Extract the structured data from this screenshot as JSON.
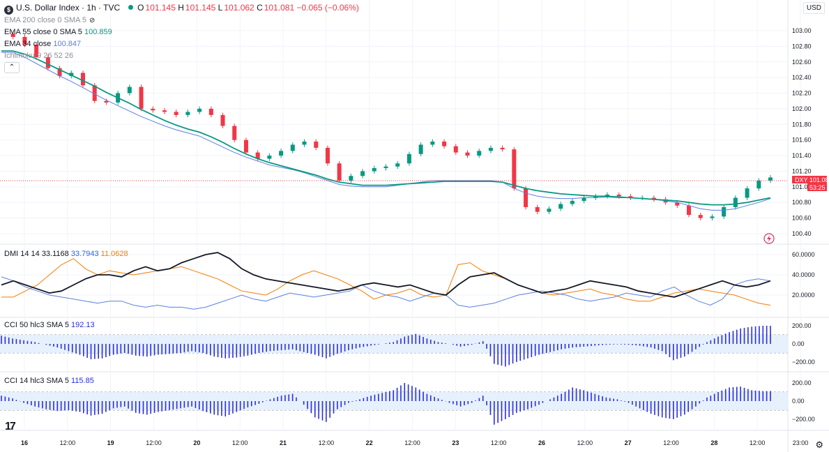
{
  "header": {
    "symbol_icon": "dollar-badge-icon",
    "title": "U.S. Dollar Index · 1h · TVC",
    "o_label": "O",
    "o": "101.145",
    "h_label": "H",
    "h": "101.145",
    "l_label": "L",
    "l": "101.062",
    "c_label": "C",
    "c": "101.081",
    "change": "−0.065 (−0.06%)"
  },
  "indicators": {
    "ema200": {
      "label": "EMA 200 close 0 SMA 5"
    },
    "ema55": {
      "label": "EMA 55 close 0 SMA 5",
      "value": "100.859",
      "color": "#089981"
    },
    "ema34": {
      "label": "EMA 34 close",
      "value": "100.847",
      "color": "#5b7fe0"
    },
    "ichimoku": {
      "label": "Ichimoku 9 26 52 26"
    },
    "dmi": {
      "label": "DMI 14 14",
      "v1": "33.1168",
      "v2": "33.7943",
      "v3": "11.0628"
    },
    "cci50": {
      "label": "CCI 50 hlc3 SMA 5",
      "value": "192.13"
    },
    "cci14": {
      "label": "CCI 14 hlc3 SMA 5",
      "value": "115.85"
    }
  },
  "currency": "USD",
  "price_tag": {
    "symbol": "DXY",
    "price": "101.08",
    "countdown": "53:25"
  },
  "colors": {
    "up": "#089981",
    "down": "#f23645",
    "cci": "#2a2ee0",
    "adx": "#131722",
    "minus_di": "#f57c00",
    "plus_di": "#5b7fe0"
  },
  "chart_data": {
    "type": "candlestick",
    "price_axis_ticks": [
      "103.00",
      "102.80",
      "102.60",
      "102.40",
      "102.20",
      "102.00",
      "101.80",
      "101.60",
      "101.40",
      "101.20",
      "101.00",
      "100.80",
      "100.60",
      "100.40"
    ],
    "time_axis_ticks": [
      "16",
      "12:00",
      "19",
      "12:00",
      "20",
      "12:00",
      "21",
      "12:00",
      "22",
      "12:00",
      "23",
      "12:00",
      "26",
      "12:00",
      "27",
      "12:00",
      "28",
      "12:00",
      "23:00"
    ],
    "dmi_axis_ticks": [
      "60.0000",
      "40.0000",
      "20.0000"
    ],
    "cci50_axis_ticks": [
      "200.00",
      "0.00",
      "−200.00"
    ],
    "cci14_axis_ticks": [
      "200.00",
      "0.00",
      "−200.00"
    ],
    "price_path": [
      102.96,
      102.92,
      102.82,
      102.66,
      102.52,
      102.42,
      102.46,
      102.3,
      102.1,
      102.08,
      102.2,
      102.28,
      102.0,
      101.98,
      101.96,
      101.92,
      101.96,
      102.0,
      101.92,
      101.78,
      101.6,
      101.44,
      101.36,
      101.4,
      101.46,
      101.54,
      101.58,
      101.5,
      101.3,
      101.08,
      101.14,
      101.2,
      101.24,
      101.26,
      101.3,
      101.42,
      101.54,
      101.58,
      101.52,
      101.44,
      101.4,
      101.46,
      101.5,
      101.48,
      100.98,
      100.74,
      100.68,
      100.72,
      100.78,
      100.82,
      100.86,
      100.88,
      100.9,
      100.88,
      100.86,
      100.86,
      100.84,
      100.8,
      100.76,
      100.64,
      100.6,
      100.62,
      100.74,
      100.86,
      100.98,
      101.08,
      101.12
    ],
    "ema55_path": [
      102.74,
      102.74,
      102.7,
      102.64,
      102.57,
      102.5,
      102.43,
      102.36,
      102.29,
      102.21,
      102.14,
      102.07,
      101.99,
      101.92,
      101.85,
      101.79,
      101.74,
      101.7,
      101.64,
      101.57,
      101.49,
      101.42,
      101.36,
      101.31,
      101.27,
      101.23,
      101.19,
      101.15,
      101.1,
      101.06,
      101.04,
      101.02,
      101.02,
      101.02,
      101.03,
      101.04,
      101.05,
      101.06,
      101.07,
      101.07,
      101.07,
      101.07,
      101.07,
      101.06,
      101.02,
      100.98,
      100.95,
      100.93,
      100.91,
      100.9,
      100.89,
      100.88,
      100.88,
      100.87,
      100.86,
      100.85,
      100.84,
      100.83,
      100.82,
      100.8,
      100.78,
      100.77,
      100.77,
      100.78,
      100.8,
      100.83,
      100.86
    ],
    "ema34_path": [
      102.72,
      102.72,
      102.66,
      102.58,
      102.5,
      102.42,
      102.35,
      102.27,
      102.19,
      102.11,
      102.04,
      101.97,
      101.9,
      101.84,
      101.78,
      101.73,
      101.69,
      101.65,
      101.58,
      101.51,
      101.44,
      101.38,
      101.33,
      101.28,
      101.25,
      101.22,
      101.18,
      101.13,
      101.08,
      101.03,
      101.01,
      101.0,
      101.0,
      101.0,
      101.02,
      101.04,
      101.06,
      101.08,
      101.08,
      101.08,
      101.08,
      101.08,
      101.08,
      101.06,
      100.98,
      100.92,
      100.88,
      100.86,
      100.85,
      100.85,
      100.86,
      100.86,
      100.87,
      100.86,
      100.86,
      100.85,
      100.84,
      100.82,
      100.8,
      100.76,
      100.72,
      100.7,
      100.7,
      100.72,
      100.76,
      100.8,
      100.85
    ],
    "dmi_adx": [
      30,
      34,
      30,
      26,
      22,
      24,
      30,
      36,
      40,
      40,
      38,
      44,
      48,
      44,
      46,
      52,
      56,
      60,
      62,
      56,
      46,
      40,
      36,
      34,
      32,
      30,
      28,
      26,
      24,
      26,
      30,
      32,
      30,
      28,
      30,
      26,
      22,
      20,
      30,
      38,
      40,
      42,
      36,
      30,
      26,
      22,
      24,
      26,
      30,
      34,
      32,
      30,
      28,
      24,
      22,
      20,
      18,
      22,
      26,
      30,
      34,
      30,
      28,
      30,
      34
    ],
    "dmi_minus": [
      18,
      18,
      24,
      30,
      40,
      50,
      56,
      46,
      40,
      44,
      42,
      40,
      42,
      44,
      46,
      48,
      44,
      40,
      36,
      30,
      24,
      22,
      20,
      26,
      34,
      40,
      44,
      40,
      36,
      30,
      24,
      16,
      20,
      22,
      26,
      20,
      18,
      20,
      50,
      52,
      44,
      40,
      36,
      30,
      26,
      22,
      20,
      22,
      24,
      26,
      22,
      20,
      16,
      14,
      14,
      18,
      22,
      24,
      26,
      24,
      22,
      20,
      16,
      12,
      10
    ],
    "dmi_plus": [
      38,
      34,
      28,
      24,
      20,
      18,
      16,
      14,
      12,
      14,
      14,
      10,
      8,
      10,
      8,
      8,
      6,
      8,
      12,
      16,
      20,
      16,
      14,
      18,
      22,
      20,
      18,
      20,
      22,
      24,
      30,
      24,
      20,
      18,
      14,
      18,
      22,
      20,
      10,
      8,
      10,
      12,
      16,
      20,
      22,
      24,
      22,
      20,
      16,
      14,
      16,
      18,
      22,
      20,
      18,
      24,
      28,
      20,
      14,
      10,
      16,
      30,
      34,
      36,
      34
    ],
    "cci50": [
      90,
      60,
      40,
      20,
      -10,
      -40,
      -80,
      -120,
      -170,
      -160,
      -120,
      -100,
      -130,
      -140,
      -120,
      -110,
      -100,
      -80,
      -100,
      -140,
      -160,
      -150,
      -130,
      -100,
      -80,
      -70,
      -60,
      -90,
      -120,
      -160,
      -110,
      -70,
      -40,
      -20,
      0,
      20,
      80,
      110,
      60,
      20,
      0,
      -30,
      -10,
      30,
      -220,
      -250,
      -200,
      -160,
      -120,
      -90,
      -60,
      -40,
      -30,
      -20,
      -10,
      -5,
      -10,
      -20,
      -40,
      -80,
      -180,
      -140,
      -60,
      20,
      80,
      130,
      170,
      190,
      200
    ],
    "cci14": [
      60,
      30,
      -20,
      -60,
      -90,
      -110,
      -100,
      -120,
      -160,
      -140,
      -80,
      -60,
      -130,
      -150,
      -120,
      -100,
      -80,
      -60,
      -110,
      -150,
      -170,
      -120,
      -70,
      -30,
      20,
      60,
      80,
      -40,
      -180,
      -230,
      -90,
      -20,
      20,
      60,
      90,
      120,
      200,
      150,
      80,
      30,
      -20,
      -60,
      -20,
      60,
      -260,
      -200,
      -130,
      -90,
      -40,
      20,
      80,
      150,
      120,
      80,
      40,
      20,
      -20,
      -80,
      -140,
      -180,
      -200,
      -150,
      -60,
      40,
      100,
      150,
      160,
      120,
      110
    ]
  }
}
